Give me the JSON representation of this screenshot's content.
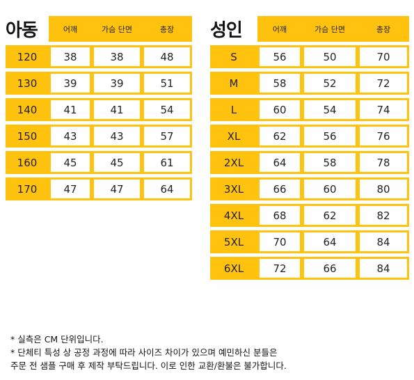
{
  "colors": {
    "accent": "#FFC20E",
    "border": "#FFC20E"
  },
  "kids": {
    "title": "아동",
    "headers": [
      "어깨",
      "가슴 단면",
      "총장"
    ],
    "rows": [
      {
        "size": "120",
        "values": [
          "38",
          "38",
          "48"
        ]
      },
      {
        "size": "130",
        "values": [
          "39",
          "39",
          "51"
        ]
      },
      {
        "size": "140",
        "values": [
          "41",
          "41",
          "54"
        ]
      },
      {
        "size": "150",
        "values": [
          "43",
          "43",
          "57"
        ]
      },
      {
        "size": "160",
        "values": [
          "45",
          "45",
          "61"
        ]
      },
      {
        "size": "170",
        "values": [
          "47",
          "47",
          "64"
        ]
      }
    ]
  },
  "adult": {
    "title": "성인",
    "headers": [
      "어깨",
      "가슴 단면",
      "총장"
    ],
    "rows": [
      {
        "size": "S",
        "values": [
          "56",
          "50",
          "70"
        ]
      },
      {
        "size": "M",
        "values": [
          "58",
          "52",
          "72"
        ]
      },
      {
        "size": "L",
        "values": [
          "60",
          "54",
          "74"
        ]
      },
      {
        "size": "XL",
        "values": [
          "62",
          "56",
          "76"
        ]
      },
      {
        "size": "2XL",
        "values": [
          "64",
          "58",
          "78"
        ]
      },
      {
        "size": "3XL",
        "values": [
          "66",
          "60",
          "80"
        ]
      },
      {
        "size": "4XL",
        "values": [
          "68",
          "62",
          "82"
        ]
      },
      {
        "size": "5XL",
        "values": [
          "70",
          "64",
          "84"
        ]
      },
      {
        "size": "6XL",
        "values": [
          "72",
          "66",
          "84"
        ]
      }
    ]
  },
  "notes": [
    "* 실측은 CM 단위입니다.",
    "* 단체티 특성 상 공정 과정에 따라 사이즈 차이가 있으며 예민하신 분들은",
    "주문 전 샘플 구매 후 제작 부탁드립니다. 이로 인한 교환/환불은 불가합니다."
  ]
}
